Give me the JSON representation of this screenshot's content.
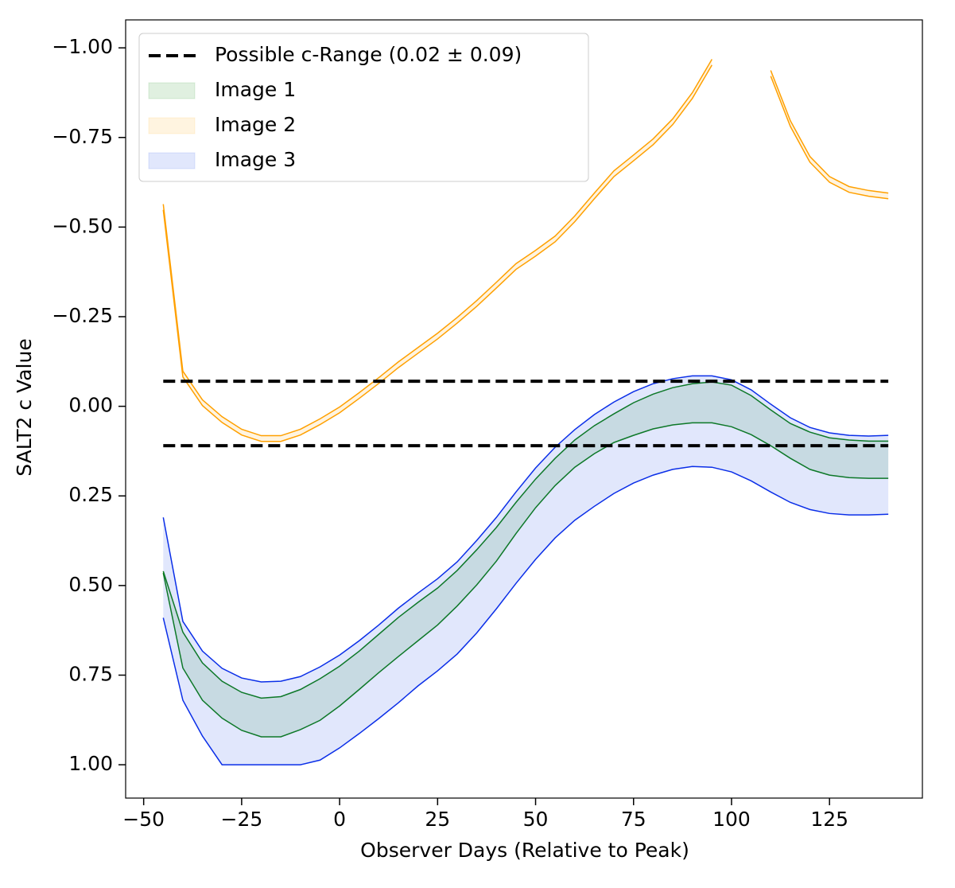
{
  "chart_data": {
    "type": "band",
    "x_label": "Observer Days (Relative to Peak)",
    "y_label": "SALT2 c Value",
    "xlim": [
      -54.6,
      148.7
    ],
    "ylim": [
      1.093,
      -1.078
    ],
    "xticks": [
      {
        "value": -50,
        "label": "−50"
      },
      {
        "value": -25,
        "label": "−25"
      },
      0,
      25,
      50,
      75,
      100,
      125
    ],
    "yticks": [
      {
        "value": -1,
        "label": "−1.00"
      },
      {
        "value": -0.75,
        "label": "−0.75"
      },
      {
        "value": -0.5,
        "label": "−0.50"
      },
      {
        "value": -0.25,
        "label": "−0.25"
      },
      {
        "value": 0,
        "label": "0.00"
      },
      0.25,
      {
        "value": 0.5,
        "label": "0.50"
      },
      0.75,
      {
        "value": 1,
        "label": "1.00"
      }
    ],
    "hlines": {
      "name": "Possible c-Range (0.02 ± 0.09)",
      "color": "#000000",
      "values": [
        -0.07,
        0.11
      ]
    },
    "legend": "upper left",
    "x": [
      -45,
      -40,
      -35,
      -30,
      -25,
      -20,
      -15,
      -10,
      -5,
      0,
      5,
      10,
      15,
      20,
      25,
      30,
      35,
      40,
      45,
      50,
      55,
      60,
      65,
      70,
      75,
      80,
      85,
      90,
      95,
      100,
      105,
      110,
      115,
      120,
      125,
      130,
      135,
      140
    ],
    "series": [
      {
        "name": "Image 1",
        "color": "#007a00",
        "fill": "rgba(0,128,0,0.12)",
        "lower": [
          0.46,
          0.63,
          0.716,
          0.767,
          0.798,
          0.814,
          0.81,
          0.79,
          0.76,
          0.725,
          0.683,
          0.636,
          0.589,
          0.547,
          0.507,
          0.458,
          0.4,
          0.338,
          0.268,
          0.203,
          0.145,
          0.094,
          0.054,
          0.021,
          -0.01,
          -0.034,
          -0.052,
          -0.063,
          -0.068,
          -0.059,
          -0.03,
          0.01,
          0.048,
          0.072,
          0.088,
          0.094,
          0.097,
          0.097
        ],
        "upper": [
          0.465,
          0.73,
          0.82,
          0.87,
          0.904,
          0.922,
          0.922,
          0.902,
          0.876,
          0.836,
          0.79,
          0.743,
          0.698,
          0.654,
          0.61,
          0.557,
          0.498,
          0.432,
          0.355,
          0.283,
          0.221,
          0.17,
          0.132,
          0.101,
          0.081,
          0.063,
          0.052,
          0.046,
          0.046,
          0.057,
          0.079,
          0.11,
          0.145,
          0.176,
          0.192,
          0.199,
          0.201,
          0.201
        ]
      },
      {
        "name": "Image 2",
        "color": "#ffa000",
        "fill": "rgba(255,165,0,0.12)",
        "lower": [
          -0.564,
          -0.098,
          -0.018,
          0.029,
          0.064,
          0.082,
          0.082,
          0.064,
          0.035,
          0.002,
          -0.038,
          -0.08,
          -0.124,
          -0.164,
          -0.204,
          -0.248,
          -0.295,
          -0.346,
          -0.398,
          -0.435,
          -0.475,
          -0.531,
          -0.595,
          -0.657,
          -0.701,
          -0.746,
          -0.802,
          -0.875,
          -0.968,
          null,
          null,
          -0.937,
          -0.797,
          -0.697,
          -0.641,
          -0.613,
          -0.602,
          -0.595
        ],
        "upper": [
          -0.548,
          -0.082,
          -0.002,
          0.045,
          0.08,
          0.098,
          0.098,
          0.08,
          0.051,
          0.018,
          -0.022,
          -0.064,
          -0.108,
          -0.148,
          -0.188,
          -0.232,
          -0.279,
          -0.33,
          -0.382,
          -0.419,
          -0.459,
          -0.515,
          -0.579,
          -0.641,
          -0.685,
          -0.73,
          -0.786,
          -0.859,
          -0.952,
          null,
          null,
          -0.921,
          -0.781,
          -0.681,
          -0.625,
          -0.597,
          -0.586,
          -0.579
        ]
      },
      {
        "name": "Image 3",
        "color": "#0a2ee8",
        "fill": "rgba(80,110,240,0.17)",
        "lower": [
          0.31,
          0.6,
          0.683,
          0.731,
          0.758,
          0.769,
          0.767,
          0.754,
          0.727,
          0.694,
          0.654,
          0.61,
          0.563,
          0.521,
          0.481,
          0.434,
          0.374,
          0.31,
          0.239,
          0.172,
          0.114,
          0.065,
          0.023,
          -0.012,
          -0.041,
          -0.063,
          -0.077,
          -0.085,
          -0.085,
          -0.074,
          -0.046,
          -0.006,
          0.032,
          0.059,
          0.074,
          0.081,
          0.083,
          0.081
        ],
        "upper": [
          0.59,
          0.82,
          0.92,
          1.0,
          1.0,
          1.0,
          1.0,
          1.0,
          0.987,
          0.953,
          0.913,
          0.871,
          0.827,
          0.78,
          0.738,
          0.691,
          0.632,
          0.565,
          0.494,
          0.427,
          0.367,
          0.318,
          0.279,
          0.243,
          0.214,
          0.192,
          0.176,
          0.168,
          0.17,
          0.183,
          0.208,
          0.239,
          0.268,
          0.288,
          0.299,
          0.303,
          0.303,
          0.301
        ]
      }
    ]
  }
}
